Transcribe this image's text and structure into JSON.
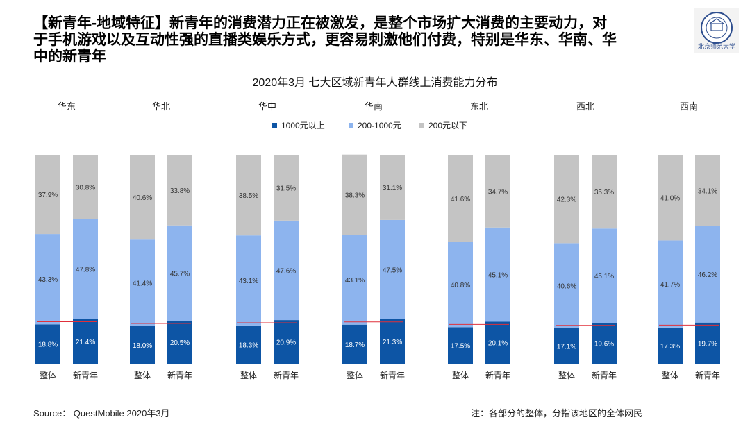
{
  "headline": "【新青年-地域特征】新青年的消费潜力正在被激发，是整个市场扩大消费的主要动力，对于手机游戏以及互动性强的直播类娱乐方式，更容易刺激他们付费，特别是华东、华南、华中的新青年",
  "logo": {
    "icon": "university-seal-icon",
    "text": "北京师范大学"
  },
  "chart_data": {
    "type": "bar",
    "stacked": true,
    "title": "2020年3月 七大区域新青年人群线上消费能力分布",
    "legend_position": "top",
    "colors": [
      "#0d55a5",
      "#8db4ee",
      "#c4c4c4"
    ],
    "reference_line_color": "#e0303a",
    "series_names": [
      "1000元以上",
      "200-1000元",
      "200元以下"
    ],
    "bar_labels": [
      "整体",
      "新青年"
    ],
    "ylim": [
      0,
      100
    ],
    "regions": [
      {
        "name": "华东",
        "bars": [
          {
            "values": [
              "18.8%",
              "43.3%",
              "37.9%"
            ]
          },
          {
            "values": [
              "21.4%",
              "47.8%",
              "30.8%"
            ]
          }
        ]
      },
      {
        "name": "华北",
        "bars": [
          {
            "values": [
              "18.0%",
              "41.4%",
              "40.6%"
            ]
          },
          {
            "values": [
              "20.5%",
              "45.7%",
              "33.8%"
            ]
          }
        ]
      },
      {
        "name": "华中",
        "bars": [
          {
            "values": [
              "18.3%",
              "43.1%",
              "38.5%"
            ]
          },
          {
            "values": [
              "20.9%",
              "47.6%",
              "31.5%"
            ]
          }
        ]
      },
      {
        "name": "华南",
        "bars": [
          {
            "values": [
              "18.7%",
              "43.1%",
              "38.3%"
            ]
          },
          {
            "values": [
              "21.3%",
              "47.5%",
              "31.1%"
            ]
          }
        ]
      },
      {
        "name": "东北",
        "bars": [
          {
            "values": [
              "17.5%",
              "40.8%",
              "41.6%"
            ]
          },
          {
            "values": [
              "20.1%",
              "45.1%",
              "34.7%"
            ]
          }
        ]
      },
      {
        "name": "西北",
        "bars": [
          {
            "values": [
              "17.1%",
              "40.6%",
              "42.3%"
            ]
          },
          {
            "values": [
              "19.6%",
              "45.1%",
              "35.3%"
            ]
          }
        ]
      },
      {
        "name": "西南",
        "bars": [
          {
            "values": [
              "17.3%",
              "41.7%",
              "41.0%"
            ]
          },
          {
            "values": [
              "19.7%",
              "46.2%",
              "34.1%"
            ]
          }
        ]
      }
    ]
  },
  "footer": {
    "source": "Source： QuestMobile 2020年3月",
    "note": "注：各部分的整体，分指该地区的全体网民"
  }
}
